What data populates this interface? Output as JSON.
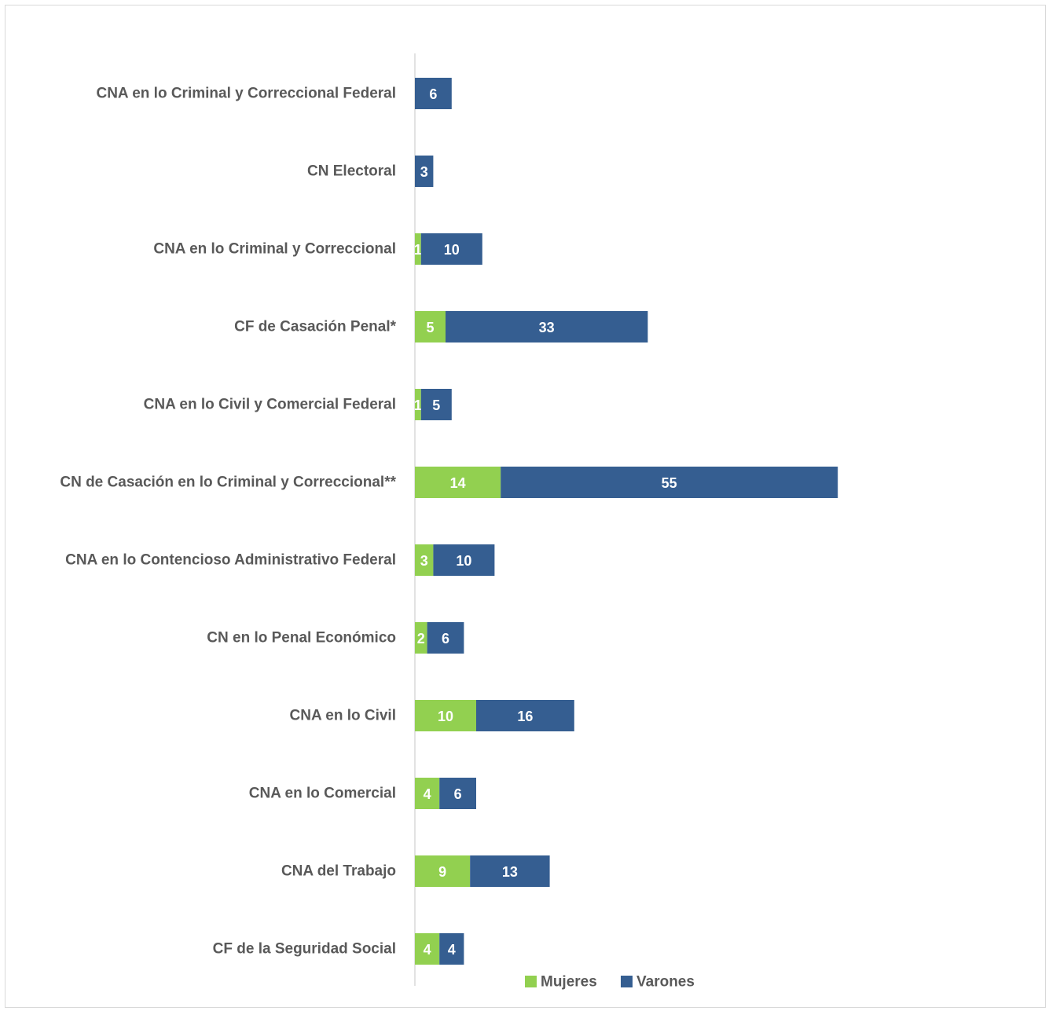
{
  "chart_data": {
    "type": "bar",
    "orientation": "horizontal",
    "stacked": true,
    "title": "",
    "xlabel": "",
    "ylabel": "",
    "categories": [
      "CNA en lo Criminal y Correccional Federal",
      "CN Electoral",
      "CNA en lo Criminal y Correccional",
      "CF de Casación Penal*",
      "CNA en lo Civil y Comercial Federal",
      "CN de Casación en lo Criminal y Correccional**",
      "CNA en lo Contencioso Administrativo Federal",
      "CN en lo Penal Económico",
      "CNA en lo Civil",
      "CNA en lo Comercial",
      "CNA del Trabajo",
      "CF de la Seguridad Social"
    ],
    "series": [
      {
        "name": "Mujeres",
        "color": "#92d050",
        "values": [
          0,
          0,
          1,
          5,
          1,
          14,
          3,
          2,
          10,
          4,
          9,
          4
        ]
      },
      {
        "name": "Varones",
        "color": "#355e91",
        "values": [
          6,
          3,
          10,
          33,
          5,
          55,
          10,
          6,
          16,
          6,
          13,
          4
        ]
      }
    ],
    "xlim": [
      0,
      69
    ],
    "grid": false,
    "legend": "bottom"
  }
}
